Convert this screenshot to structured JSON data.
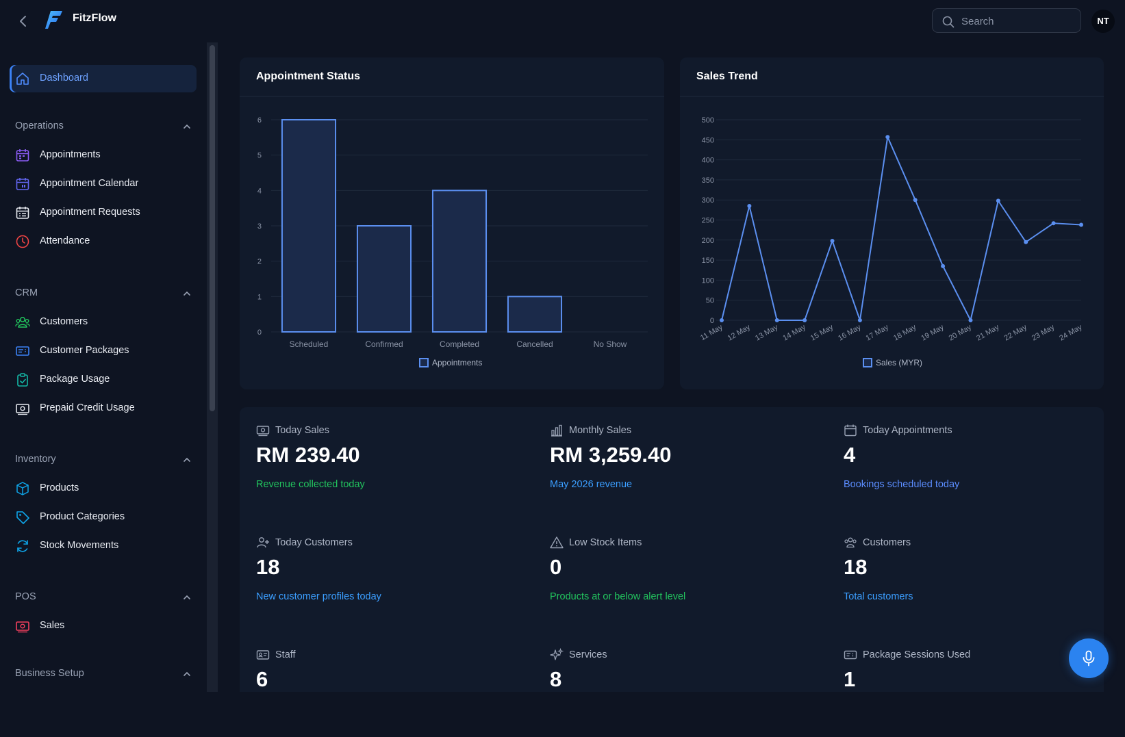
{
  "header": {
    "app_title": "FitzFlow",
    "search_placeholder": "Search",
    "avatar_initials": "NT"
  },
  "sidebar": {
    "dashboard": "Dashboard",
    "sections": [
      {
        "label": "Operations",
        "items": [
          "Appointments",
          "Appointment Calendar",
          "Appointment Requests",
          "Attendance"
        ]
      },
      {
        "label": "CRM",
        "items": [
          "Customers",
          "Customer Packages",
          "Package Usage",
          "Prepaid Credit Usage"
        ]
      },
      {
        "label": "Inventory",
        "items": [
          "Products",
          "Product Categories",
          "Stock Movements"
        ]
      },
      {
        "label": "POS",
        "items": [
          "Sales"
        ]
      },
      {
        "label": "Business Setup",
        "items": []
      }
    ]
  },
  "appointment_status": {
    "title": "Appointment Status",
    "legend": "Appointments"
  },
  "sales_trend": {
    "title": "Sales Trend",
    "legend": "Sales (MYR)"
  },
  "chart_data": [
    {
      "type": "bar",
      "title": "Appointment Status",
      "categories": [
        "Scheduled",
        "Confirmed",
        "Completed",
        "Cancelled",
        "No Show"
      ],
      "series": [
        {
          "name": "Appointments",
          "values": [
            6,
            3,
            4,
            1,
            0
          ]
        }
      ],
      "ylim": [
        0,
        6
      ],
      "yticks": [
        0,
        1,
        2,
        3,
        4,
        5,
        6
      ],
      "grid": true,
      "legend_position": "bottom"
    },
    {
      "type": "line",
      "title": "Sales Trend",
      "categories": [
        "11 May",
        "12 May",
        "13 May",
        "14 May",
        "15 May",
        "16 May",
        "17 May",
        "18 May",
        "19 May",
        "20 May",
        "21 May",
        "22 May",
        "23 May",
        "24 May"
      ],
      "series": [
        {
          "name": "Sales (MYR)",
          "values": [
            0,
            285,
            0,
            0,
            198,
            0,
            457,
            300,
            135,
            0,
            298,
            195,
            242,
            238
          ]
        }
      ],
      "ylim": [
        0,
        500
      ],
      "yticks": [
        0,
        50,
        100,
        150,
        200,
        250,
        300,
        350,
        400,
        450,
        500
      ],
      "grid": true,
      "legend_position": "bottom"
    }
  ],
  "stats": [
    {
      "icon": "banknote-icon",
      "label": "Today Sales",
      "value": "RM 239.40",
      "sub": "Revenue collected today",
      "sub_color": "#22c55e"
    },
    {
      "icon": "bar-chart-icon",
      "label": "Monthly Sales",
      "value": "RM 3,259.40",
      "sub": "May 2026 revenue",
      "sub_color": "#3b9eff"
    },
    {
      "icon": "calendar-icon",
      "label": "Today Appointments",
      "value": "4",
      "sub": "Bookings scheduled today",
      "sub_color": "#5b8dff"
    },
    {
      "icon": "user-plus-icon",
      "label": "Today Customers",
      "value": "18",
      "sub": "New customer profiles today",
      "sub_color": "#3b9eff"
    },
    {
      "icon": "alert-triangle-icon",
      "label": "Low Stock Items",
      "value": "0",
      "sub": "Products at or below alert level",
      "sub_color": "#22c55e"
    },
    {
      "icon": "users-icon",
      "label": "Customers",
      "value": "18",
      "sub": "Total customers",
      "sub_color": "#3b9eff"
    },
    {
      "icon": "id-card-icon",
      "label": "Staff",
      "value": "6",
      "sub": "",
      "sub_color": "#3b9eff"
    },
    {
      "icon": "sparkles-icon",
      "label": "Services",
      "value": "8",
      "sub": "",
      "sub_color": "#3b9eff"
    },
    {
      "icon": "ticket-icon",
      "label": "Package Sessions Used",
      "value": "1",
      "sub": "",
      "sub_color": "#3b9eff"
    }
  ],
  "colors": {
    "accent": "#3b82f6",
    "bar_fill": "#1b2a4a",
    "bar_stroke": "#5b8ff0",
    "line": "#5b8ff0",
    "background": "#0e1422",
    "card": "#111a2b"
  }
}
